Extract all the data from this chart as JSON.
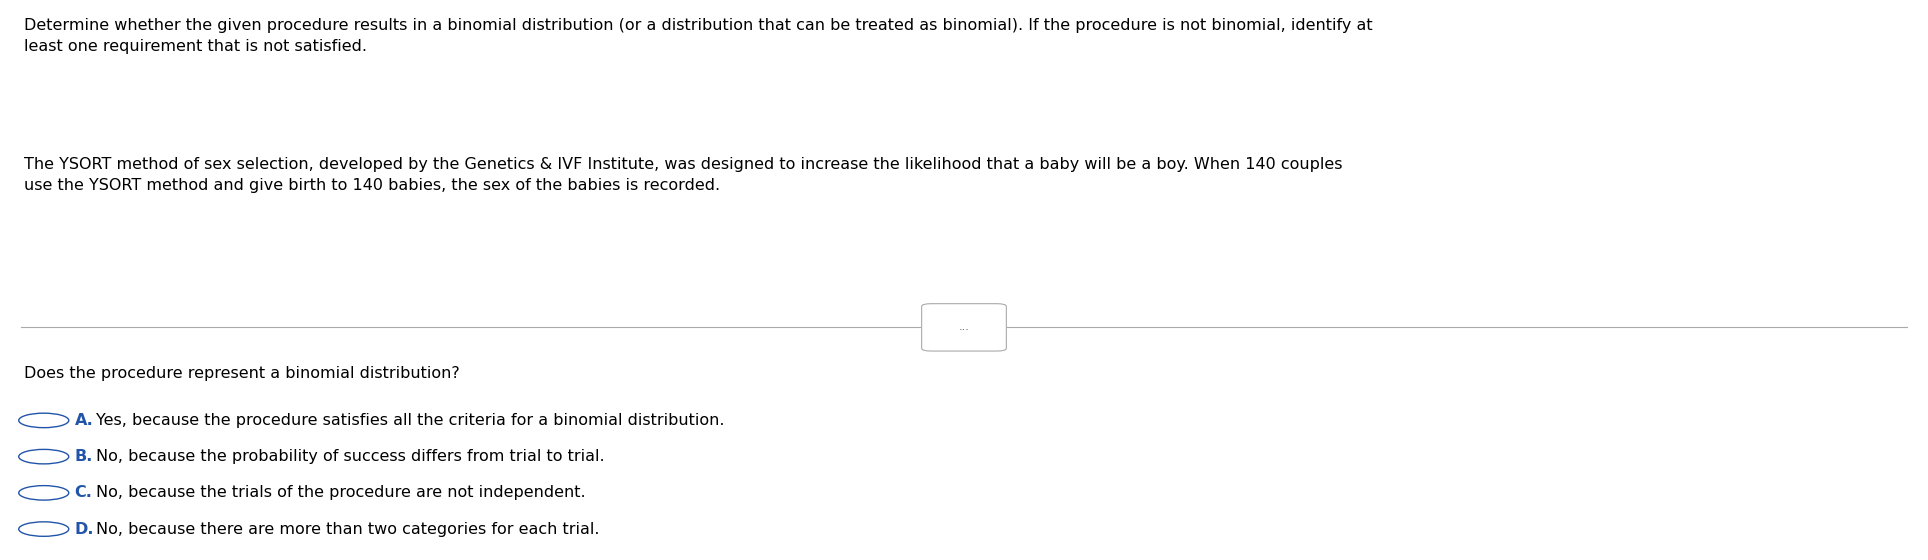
{
  "background_color": "#ffffff",
  "text_color": "#000000",
  "paragraph1": "Determine whether the given procedure results in a binomial distribution (or a distribution that can be treated as binomial). If the procedure is not binomial, identify at\nleast one requirement that is not satisfied.",
  "paragraph2": "The YSORT method of sex selection, developed by the Genetics & IVF Institute, was designed to increase the likelihood that a baby will be a boy. When 140 couples\nuse the YSORT method and give birth to 140 babies, the sex of the babies is recorded.",
  "divider_label": "...",
  "question": "Does the procedure represent a binomial distribution?",
  "options": [
    {
      "letter": "A.",
      "text": "Yes, because the procedure satisfies all the criteria for a binomial distribution."
    },
    {
      "letter": "B.",
      "text": "No, because the probability of success differs from trial to trial."
    },
    {
      "letter": "C.",
      "text": "No, because the trials of the procedure are not independent."
    },
    {
      "letter": "D.",
      "text": "No, because there are more than two categories for each trial."
    }
  ],
  "option_letter_color": "#2255aa",
  "circle_color": "#2255aa",
  "font_size_paragraph": 11.5,
  "font_size_question": 11.5,
  "font_size_options": 11.5,
  "line_color": "#aaaaaa",
  "divider_text_color": "#555555"
}
